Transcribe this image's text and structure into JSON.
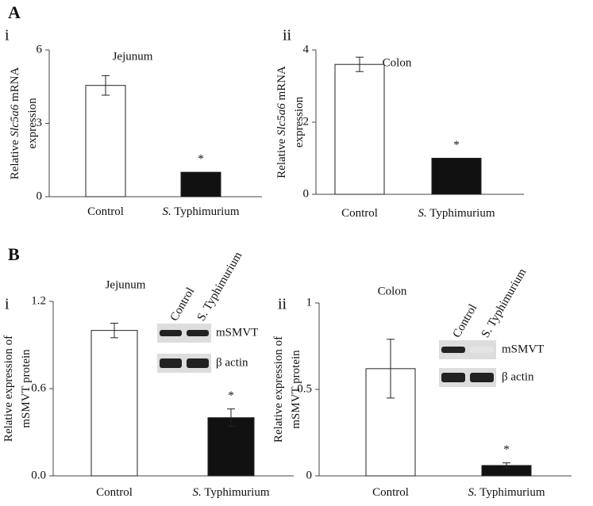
{
  "chart_data": [
    {
      "type": "bar",
      "section": "A",
      "panel": "i",
      "title": "Jejunum",
      "ylabel": [
        [
          {
            "text": "Relative "
          },
          {
            "text": "Slc5a6",
            "italic": true
          },
          {
            "text": " mRNA"
          }
        ],
        [
          {
            "text": "expression"
          }
        ]
      ],
      "categories": [
        [
          {
            "text": "Control"
          }
        ],
        [
          {
            "text": "S.",
            "italic": true
          },
          {
            "text": " Typhimurium"
          }
        ]
      ],
      "values": [
        4.55,
        1.0
      ],
      "errors": [
        0.4,
        null
      ],
      "significance": [
        null,
        "*"
      ],
      "colors": [
        "#ffffff",
        "#111111"
      ],
      "ylim": [
        0,
        6
      ],
      "yticks": [
        0,
        3,
        6
      ]
    },
    {
      "type": "bar",
      "panel": "ii",
      "title": "Colon",
      "ylabel": [
        [
          {
            "text": "Relative "
          },
          {
            "text": "Slc5a6",
            "italic": true
          },
          {
            "text": " mRNA"
          }
        ],
        [
          {
            "text": "expression"
          }
        ]
      ],
      "categories": [
        [
          {
            "text": "Control"
          }
        ],
        [
          {
            "text": "S.",
            "italic": true
          },
          {
            "text": " Typhimurium"
          }
        ]
      ],
      "values": [
        3.6,
        1.0
      ],
      "errors": [
        0.2,
        null
      ],
      "significance": [
        null,
        "*"
      ],
      "colors": [
        "#ffffff",
        "#111111"
      ],
      "ylim": [
        0,
        4
      ],
      "yticks": [
        0,
        2,
        4
      ]
    },
    {
      "type": "bar",
      "section": "B",
      "panel": "i",
      "title": "Jejunum",
      "ylabel": [
        [
          {
            "text": "Relative expression of"
          }
        ],
        [
          {
            "text": "mSMVT protein"
          }
        ]
      ],
      "categories": [
        [
          {
            "text": "Control"
          }
        ],
        [
          {
            "text": "S.",
            "italic": true
          },
          {
            "text": " Typhimurium"
          }
        ]
      ],
      "values": [
        1.0,
        0.4
      ],
      "errors": [
        0.05,
        0.06
      ],
      "significance": [
        null,
        "*"
      ],
      "colors": [
        "#ffffff",
        "#111111"
      ],
      "ylim": [
        0,
        1.2
      ],
      "yticks": [
        {
          "value": 0,
          "label": "0.0"
        },
        0.6,
        1.2
      ],
      "inset": {
        "lanes": [
          "Control",
          "S. Typhimurium"
        ],
        "rows": [
          "mSMVT",
          "β actin"
        ]
      }
    },
    {
      "type": "bar",
      "panel": "ii",
      "title": "Colon",
      "ylabel": [
        [
          {
            "text": "Relative expression of"
          }
        ],
        [
          {
            "text": "mSMVT protein"
          }
        ]
      ],
      "categories": [
        [
          {
            "text": "Control"
          }
        ],
        [
          {
            "text": "S.",
            "italic": true
          },
          {
            "text": " Typhimurium"
          }
        ]
      ],
      "values": [
        0.62,
        0.06
      ],
      "errors": [
        0.17,
        0.015
      ],
      "significance": [
        null,
        "*"
      ],
      "colors": [
        "#ffffff",
        "#111111"
      ],
      "ylim": [
        0,
        1
      ],
      "yticks": [
        0,
        0.5,
        1
      ],
      "inset": {
        "lanes": [
          "Control",
          "S. Typhimurium"
        ],
        "rows": [
          "mSMVT",
          "β actin"
        ]
      }
    }
  ]
}
